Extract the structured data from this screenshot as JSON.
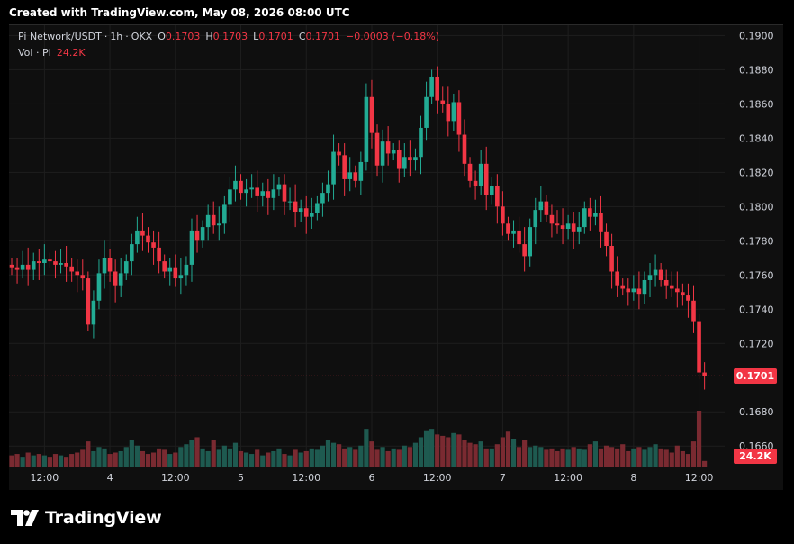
{
  "header": {
    "created_text": "Created with TradingView.com, May 08, 2026 08:00 UTC"
  },
  "legend": {
    "symbol": "Pi Network/USDT",
    "interval": "1h",
    "exchange": "OKX",
    "o_label": "O",
    "o_value": "0.1703",
    "h_label": "H",
    "h_value": "0.1703",
    "l_label": "L",
    "l_value": "0.1701",
    "c_label": "C",
    "c_value": "0.1701",
    "change": "−0.0003 (−0.18%)",
    "vol_label": "Vol · PI",
    "vol_value": "24.2K"
  },
  "footer": {
    "brand": "TradingView"
  },
  "colors": {
    "up": "#22ab94",
    "down": "#f23645",
    "background": "#0f0f0f",
    "grid": "#1e1e1e",
    "text": "#d1d4dc"
  },
  "chart_data": {
    "type": "candlestick",
    "y_axis": {
      "range": [
        0.1648,
        0.1906
      ],
      "ticks": [
        "0.1900",
        "0.1880",
        "0.1860",
        "0.1840",
        "0.1820",
        "0.1800",
        "0.1780",
        "0.1760",
        "0.1740",
        "0.1720",
        "0.1680",
        "0.1660"
      ]
    },
    "x_axis": {
      "ticks": [
        {
          "label": "12:00",
          "index": 6
        },
        {
          "label": "4",
          "index": 18
        },
        {
          "label": "12:00",
          "index": 30
        },
        {
          "label": "5",
          "index": 42
        },
        {
          "label": "12:00",
          "index": 54
        },
        {
          "label": "6",
          "index": 66
        },
        {
          "label": "12:00",
          "index": 78
        },
        {
          "label": "7",
          "index": 90
        },
        {
          "label": "12:00",
          "index": 102
        },
        {
          "label": "8",
          "index": 114
        },
        {
          "label": "12:00",
          "index": 126
        }
      ]
    },
    "last_price": "0.1701",
    "last_volume": "24.2K",
    "closes": [
      0.1764,
      0.1763,
      0.1766,
      0.1763,
      0.1768,
      0.1767,
      0.1769,
      0.1768,
      0.1766,
      0.1767,
      0.1765,
      0.1762,
      0.176,
      0.1758,
      0.1731,
      0.1745,
      0.1761,
      0.177,
      0.1762,
      0.1754,
      0.1761,
      0.1768,
      0.1778,
      0.1786,
      0.1783,
      0.1779,
      0.1776,
      0.1768,
      0.1762,
      0.1764,
      0.1758,
      0.176,
      0.1766,
      0.1786,
      0.178,
      0.1788,
      0.1795,
      0.1789,
      0.179,
      0.1801,
      0.181,
      0.1815,
      0.1808,
      0.181,
      0.1811,
      0.1806,
      0.1809,
      0.1805,
      0.181,
      0.1813,
      0.1803,
      0.1803,
      0.1797,
      0.1799,
      0.1794,
      0.1796,
      0.1802,
      0.1808,
      0.1813,
      0.1832,
      0.183,
      0.1816,
      0.182,
      0.1815,
      0.1826,
      0.1864,
      0.1843,
      0.1824,
      0.1838,
      0.1831,
      0.1833,
      0.1822,
      0.1829,
      0.1827,
      0.1829,
      0.1846,
      0.1864,
      0.1876,
      0.1862,
      0.186,
      0.185,
      0.1861,
      0.1842,
      0.1825,
      0.1815,
      0.1812,
      0.1825,
      0.1807,
      0.1812,
      0.18,
      0.179,
      0.1784,
      0.1786,
      0.1778,
      0.1771,
      0.1788,
      0.1798,
      0.1803,
      0.1795,
      0.179,
      0.1789,
      0.1787,
      0.179,
      0.1785,
      0.1788,
      0.1799,
      0.1794,
      0.1796,
      0.1785,
      0.1777,
      0.1762,
      0.1754,
      0.1752,
      0.175,
      0.1752,
      0.1749,
      0.1757,
      0.176,
      0.1763,
      0.1757,
      0.1754,
      0.1752,
      0.175,
      0.1748,
      0.1745,
      0.1733,
      0.1703,
      0.1701
    ],
    "volumes": [
      8,
      9,
      7,
      10,
      8,
      9,
      8,
      7,
      9,
      8,
      7,
      9,
      10,
      12,
      18,
      11,
      14,
      13,
      9,
      10,
      11,
      14,
      19,
      15,
      11,
      9,
      10,
      13,
      12,
      9,
      10,
      14,
      16,
      19,
      21,
      13,
      11,
      19,
      12,
      15,
      13,
      17,
      11,
      10,
      9,
      12,
      8,
      10,
      11,
      13,
      9,
      8,
      12,
      10,
      11,
      13,
      12,
      15,
      19,
      17,
      16,
      13,
      14,
      12,
      15,
      27,
      18,
      12,
      14,
      11,
      13,
      12,
      15,
      14,
      17,
      21,
      26,
      27,
      23,
      22,
      21,
      24,
      23,
      19,
      17,
      16,
      18,
      13,
      13,
      16,
      21,
      25,
      20,
      14,
      19,
      14,
      15,
      14,
      12,
      13,
      11,
      13,
      12,
      14,
      13,
      12,
      16,
      18,
      13,
      15,
      14,
      13,
      16,
      11,
      13,
      14,
      12,
      14,
      16,
      13,
      12,
      10,
      15,
      11,
      9,
      18,
      40,
      4
    ]
  }
}
